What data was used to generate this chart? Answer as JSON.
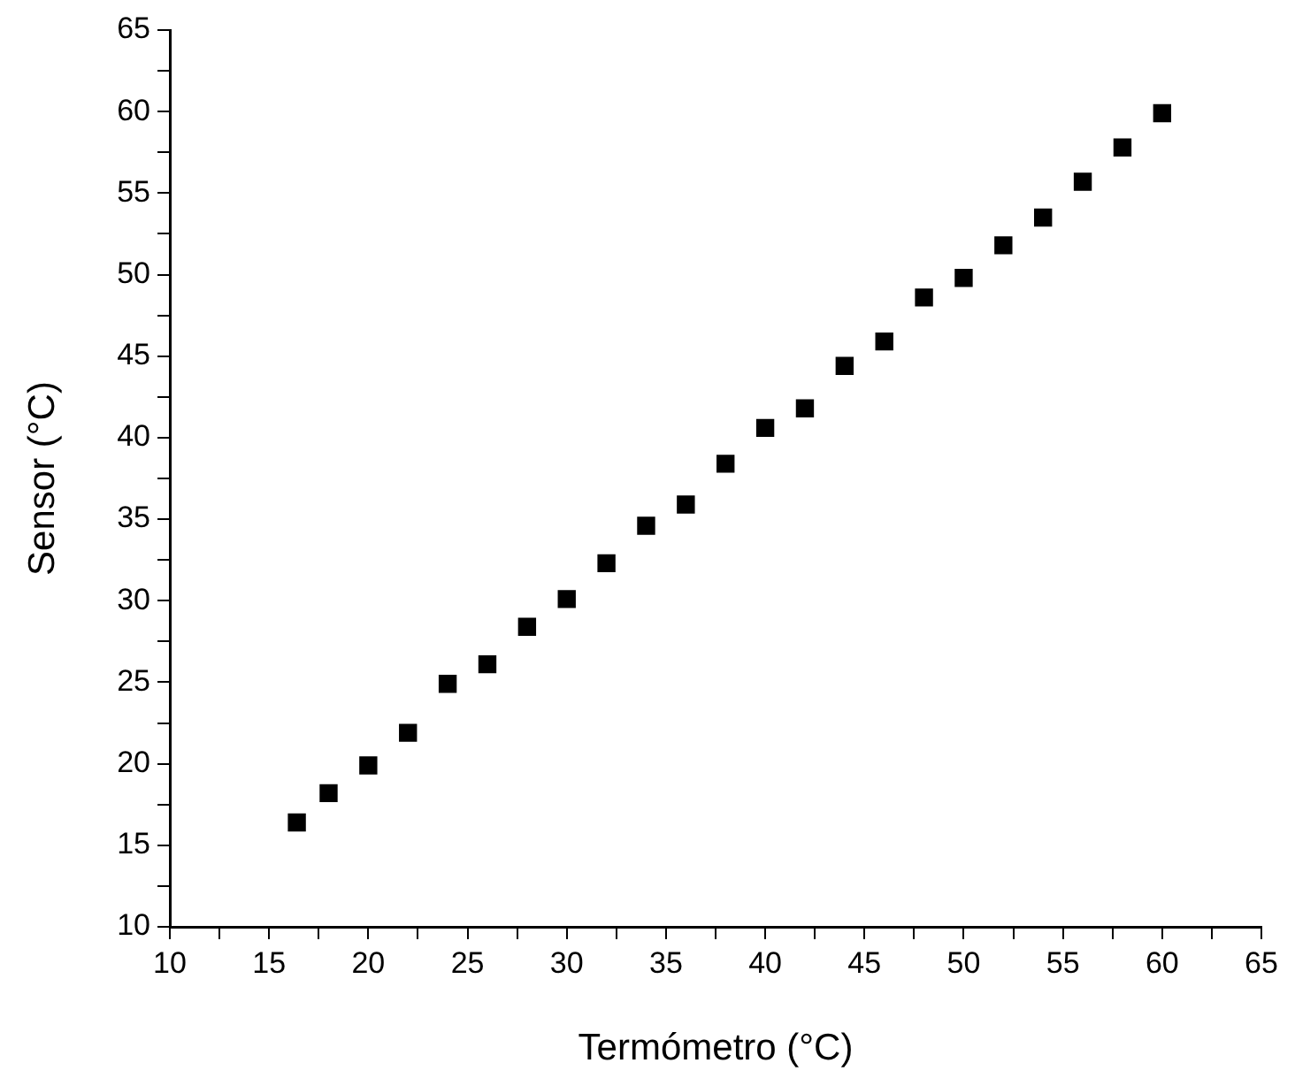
{
  "chart_data": {
    "type": "scatter",
    "xlabel": "Termómetro (°C)",
    "ylabel": "Sensor (°C)",
    "marker": "square",
    "grid": false,
    "legend": false,
    "xlim": [
      10,
      65
    ],
    "ylim": [
      10,
      65
    ],
    "xticks": [
      10,
      {
        "value": 12.5,
        "label": null
      },
      15,
      {
        "value": 17.5,
        "label": null
      },
      20,
      {
        "value": 22.5,
        "label": null
      },
      25,
      {
        "value": 27.5,
        "label": null
      },
      30,
      {
        "value": 32.5,
        "label": null
      },
      35,
      {
        "value": 37.5,
        "label": null
      },
      40,
      {
        "value": 42.5,
        "label": null
      },
      45,
      {
        "value": 47.5,
        "label": null
      },
      50,
      {
        "value": 52.5,
        "label": null
      },
      55,
      {
        "value": 57.5,
        "label": null
      },
      60,
      {
        "value": 62.5,
        "label": null
      },
      65
    ],
    "yticks": [
      10,
      {
        "value": 12.5,
        "label": null
      },
      15,
      {
        "value": 17.5,
        "label": null
      },
      20,
      {
        "value": 22.5,
        "label": null
      },
      25,
      {
        "value": 27.5,
        "label": null
      },
      30,
      {
        "value": 32.5,
        "label": null
      },
      35,
      {
        "value": 37.5,
        "label": null
      },
      40,
      {
        "value": 42.5,
        "label": null
      },
      45,
      {
        "value": 47.5,
        "label": null
      },
      50,
      {
        "value": 52.5,
        "label": null
      },
      55,
      {
        "value": 57.5,
        "label": null
      },
      60,
      {
        "value": 62.5,
        "label": null
      },
      65
    ],
    "series": [
      {
        "color": "#000000",
        "x": [
          16.4,
          18,
          20,
          22,
          24,
          26,
          28,
          30,
          32,
          34,
          36,
          38,
          40,
          42,
          44,
          46,
          48,
          50,
          52,
          54,
          56,
          58,
          60
        ],
        "values": [
          16.4,
          18.2,
          19.9,
          21.9,
          24.9,
          26.1,
          28.4,
          30.1,
          32.3,
          34.6,
          35.9,
          38.4,
          40.6,
          41.8,
          44.4,
          45.9,
          48.6,
          49.8,
          51.8,
          53.5,
          55.7,
          57.8,
          59.9
        ]
      }
    ]
  }
}
